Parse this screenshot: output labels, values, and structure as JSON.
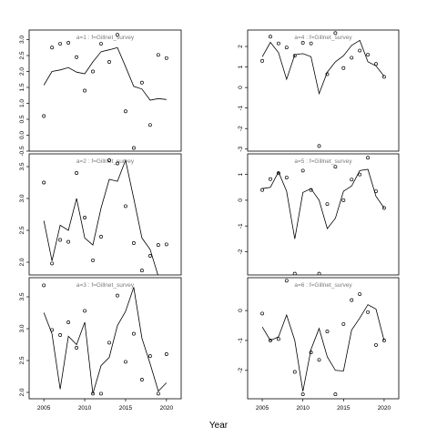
{
  "chart_data": {
    "type": "scatter",
    "xlabel": "Year",
    "x_ticks": [
      2005,
      2010,
      2015,
      2020
    ],
    "panels": [
      {
        "title": "a=1  :  f=Gillnet_survey",
        "ylim": [
          -0.5,
          3.3
        ],
        "y_ticks": [
          -0.5,
          0.0,
          0.5,
          1.0,
          1.5,
          2.0,
          2.5,
          3.0
        ],
        "y_tick_labels": [
          "-0.5",
          "0.0",
          "0.5",
          "1.0",
          "1.5",
          "2.0",
          "2.5",
          "3.0"
        ],
        "points": [
          [
            2005,
            0.6
          ],
          [
            2006,
            2.75
          ],
          [
            2007,
            2.87
          ],
          [
            2008,
            2.9
          ],
          [
            2009,
            2.45
          ],
          [
            2010,
            1.4
          ],
          [
            2011,
            2.0
          ],
          [
            2012,
            2.87
          ],
          [
            2013,
            2.3
          ],
          [
            2014,
            3.15
          ],
          [
            2015,
            0.75
          ],
          [
            2016,
            -0.4
          ],
          [
            2017,
            1.65
          ],
          [
            2018,
            0.32
          ],
          [
            2019,
            2.52
          ],
          [
            2020,
            2.42
          ]
        ],
        "line": [
          [
            2005,
            1.57
          ],
          [
            2006,
            2.0
          ],
          [
            2007,
            2.05
          ],
          [
            2008,
            2.12
          ],
          [
            2009,
            1.98
          ],
          [
            2010,
            1.93
          ],
          [
            2011,
            2.3
          ],
          [
            2012,
            2.62
          ],
          [
            2013,
            2.68
          ],
          [
            2014,
            2.75
          ],
          [
            2015,
            2.15
          ],
          [
            2016,
            1.53
          ],
          [
            2017,
            1.45
          ],
          [
            2018,
            1.1
          ],
          [
            2019,
            1.15
          ],
          [
            2020,
            1.12
          ]
        ]
      },
      {
        "title": "a=4  :  f=Gillnet_survey",
        "ylim": [
          -3.1,
          2.8
        ],
        "y_ticks": [
          -3,
          -2,
          -1,
          0,
          1,
          2
        ],
        "y_tick_labels": [
          "-3",
          "-2",
          "-1",
          "0",
          "1",
          "2"
        ],
        "points": [
          [
            2005,
            1.3
          ],
          [
            2006,
            2.48
          ],
          [
            2007,
            2.15
          ],
          [
            2008,
            1.95
          ],
          [
            2009,
            1.55
          ],
          [
            2010,
            2.18
          ],
          [
            2011,
            2.15
          ],
          [
            2012,
            -2.85
          ],
          [
            2013,
            0.65
          ],
          [
            2014,
            2.65
          ],
          [
            2015,
            0.95
          ],
          [
            2016,
            1.45
          ],
          [
            2017,
            1.8
          ],
          [
            2018,
            1.6
          ],
          [
            2019,
            1.15
          ],
          [
            2020,
            0.52
          ]
        ],
        "line": [
          [
            2005,
            1.5
          ],
          [
            2006,
            2.2
          ],
          [
            2007,
            1.7
          ],
          [
            2008,
            0.4
          ],
          [
            2009,
            1.6
          ],
          [
            2010,
            1.65
          ],
          [
            2011,
            1.5
          ],
          [
            2012,
            -0.3
          ],
          [
            2013,
            0.75
          ],
          [
            2014,
            1.25
          ],
          [
            2015,
            1.55
          ],
          [
            2016,
            2.05
          ],
          [
            2017,
            2.3
          ],
          [
            2018,
            1.25
          ],
          [
            2019,
            1.05
          ],
          [
            2020,
            0.55
          ]
        ]
      },
      {
        "title": "a=2  :  f=Gillnet_survey",
        "ylim": [
          1.8,
          3.7
        ],
        "y_ticks": [
          2.0,
          2.5,
          3.0,
          3.5
        ],
        "y_tick_labels": [
          "2.0",
          "2.5",
          "3.0",
          "3.5"
        ],
        "points": [
          [
            2005,
            3.25
          ],
          [
            2006,
            1.98
          ],
          [
            2007,
            2.35
          ],
          [
            2008,
            2.32
          ],
          [
            2009,
            3.4
          ],
          [
            2010,
            2.7
          ],
          [
            2011,
            2.03
          ],
          [
            2012,
            2.4
          ],
          [
            2013,
            3.6
          ],
          [
            2014,
            3.55
          ],
          [
            2015,
            2.88
          ],
          [
            2016,
            2.3
          ],
          [
            2017,
            1.87
          ],
          [
            2018,
            2.1
          ],
          [
            2019,
            2.27
          ],
          [
            2020,
            2.28
          ]
        ],
        "line": [
          [
            2005,
            2.65
          ],
          [
            2006,
            2.02
          ],
          [
            2007,
            2.58
          ],
          [
            2008,
            2.5
          ],
          [
            2009,
            3.0
          ],
          [
            2010,
            2.38
          ],
          [
            2011,
            2.27
          ],
          [
            2012,
            2.85
          ],
          [
            2013,
            3.3
          ],
          [
            2014,
            3.27
          ],
          [
            2015,
            3.6
          ],
          [
            2016,
            3.0
          ],
          [
            2017,
            2.38
          ],
          [
            2018,
            2.2
          ],
          [
            2019,
            1.78
          ]
        ]
      },
      {
        "title": "a=5  :  f=Gillnet_survey",
        "ylim": [
          -2.9,
          1.8
        ],
        "y_ticks": [
          -2,
          -1,
          0,
          1
        ],
        "y_tick_labels": [
          "-2",
          "-1",
          "0",
          "1"
        ],
        "points": [
          [
            2005,
            0.4
          ],
          [
            2006,
            0.82
          ],
          [
            2007,
            1.05
          ],
          [
            2008,
            0.88
          ],
          [
            2009,
            -2.85
          ],
          [
            2010,
            1.15
          ],
          [
            2011,
            0.4
          ],
          [
            2012,
            -2.85
          ],
          [
            2013,
            -0.15
          ],
          [
            2014,
            1.3
          ],
          [
            2015,
            0.0
          ],
          [
            2016,
            0.8
          ],
          [
            2017,
            1.0
          ],
          [
            2018,
            1.65
          ],
          [
            2019,
            0.35
          ],
          [
            2020,
            -0.3
          ]
        ],
        "line": [
          [
            2005,
            0.45
          ],
          [
            2006,
            0.5
          ],
          [
            2007,
            1.1
          ],
          [
            2008,
            0.35
          ],
          [
            2009,
            -1.5
          ],
          [
            2010,
            0.3
          ],
          [
            2011,
            0.45
          ],
          [
            2012,
            0.0
          ],
          [
            2013,
            -1.1
          ],
          [
            2014,
            -0.7
          ],
          [
            2015,
            0.35
          ],
          [
            2016,
            0.55
          ],
          [
            2017,
            1.15
          ],
          [
            2018,
            1.2
          ],
          [
            2019,
            0.15
          ],
          [
            2020,
            -0.3
          ]
        ]
      },
      {
        "title": "a=3  :  f=Gillnet_survey",
        "ylim": [
          1.9,
          3.8
        ],
        "y_ticks": [
          2.0,
          2.5,
          3.0,
          3.5
        ],
        "y_tick_labels": [
          "2.0",
          "2.5",
          "3.0",
          "3.5"
        ],
        "points": [
          [
            2005,
            3.68
          ],
          [
            2006,
            2.98
          ],
          [
            2007,
            2.9
          ],
          [
            2008,
            3.1
          ],
          [
            2009,
            2.7
          ],
          [
            2010,
            3.28
          ],
          [
            2011,
            1.98
          ],
          [
            2012,
            1.98
          ],
          [
            2013,
            2.78
          ],
          [
            2014,
            3.52
          ],
          [
            2015,
            2.48
          ],
          [
            2016,
            2.92
          ],
          [
            2017,
            2.2
          ],
          [
            2018,
            2.57
          ],
          [
            2019,
            1.98
          ],
          [
            2020,
            2.6
          ]
        ],
        "line": [
          [
            2005,
            3.25
          ],
          [
            2006,
            2.92
          ],
          [
            2007,
            2.05
          ],
          [
            2008,
            2.88
          ],
          [
            2009,
            2.75
          ],
          [
            2010,
            3.1
          ],
          [
            2011,
            1.98
          ],
          [
            2012,
            2.42
          ],
          [
            2013,
            2.55
          ],
          [
            2014,
            3.05
          ],
          [
            2015,
            3.27
          ],
          [
            2016,
            3.65
          ],
          [
            2017,
            2.85
          ],
          [
            2018,
            2.45
          ],
          [
            2019,
            2.02
          ],
          [
            2020,
            2.15
          ]
        ]
      },
      {
        "title": "a=6  :  f=Gillnet_survey",
        "ylim": [
          -2.95,
          1.1
        ],
        "y_ticks": [
          -2,
          -1,
          0
        ],
        "y_tick_labels": [
          "-2",
          "-1",
          "0"
        ],
        "points": [
          [
            2005,
            -0.1
          ],
          [
            2006,
            -1.0
          ],
          [
            2007,
            -0.95
          ],
          [
            2008,
            1.0
          ],
          [
            2009,
            -2.05
          ],
          [
            2010,
            -2.8
          ],
          [
            2011,
            -1.4
          ],
          [
            2012,
            -1.65
          ],
          [
            2013,
            -0.7
          ],
          [
            2014,
            -2.8
          ],
          [
            2015,
            -0.45
          ],
          [
            2016,
            0.35
          ],
          [
            2017,
            0.55
          ],
          [
            2018,
            -0.05
          ],
          [
            2019,
            -1.15
          ],
          [
            2020,
            -1.0
          ]
        ],
        "line": [
          [
            2005,
            -0.55
          ],
          [
            2006,
            -1.0
          ],
          [
            2007,
            -0.88
          ],
          [
            2008,
            -0.15
          ],
          [
            2009,
            -1.0
          ],
          [
            2010,
            -2.7
          ],
          [
            2011,
            -1.3
          ],
          [
            2012,
            -0.6
          ],
          [
            2013,
            -1.55
          ],
          [
            2014,
            -2.0
          ],
          [
            2015,
            -2.02
          ],
          [
            2016,
            -0.65
          ],
          [
            2017,
            -0.25
          ],
          [
            2018,
            0.2
          ],
          [
            2019,
            0.05
          ],
          [
            2020,
            -1.0
          ]
        ]
      }
    ]
  }
}
